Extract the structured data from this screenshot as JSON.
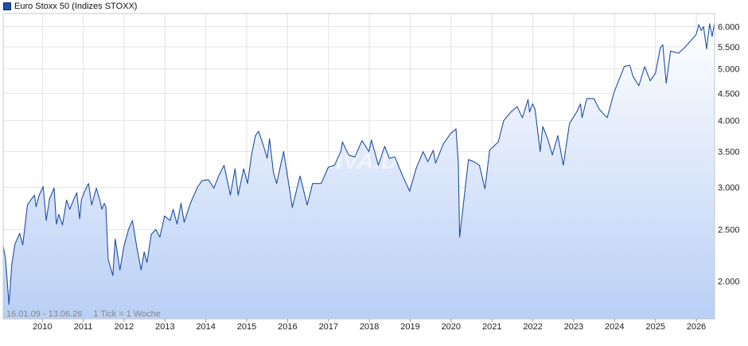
{
  "legend": {
    "label": "Euro Stoxx 50 (Indizes STOXX)",
    "color": "#1e4ea8"
  },
  "note": {
    "range": "16.01.09 - 13.06.26",
    "tick": "1 Tick = 1 Woche"
  },
  "watermark": "ARIVA.DE",
  "chart_data": {
    "type": "area",
    "title": "Euro Stoxx 50 (Indizes STOXX)",
    "y_scale": "log",
    "ylim": [
      1700,
      6350
    ],
    "x_range": [
      "2009-01-16",
      "2026-06-13"
    ],
    "y_ticks": [
      2000,
      2500,
      3000,
      3500,
      4000,
      4500,
      5000,
      5500,
      6000
    ],
    "y_tick_labels": [
      "2.000",
      "2.500",
      "3.000",
      "3.500",
      "4.000",
      "4.500",
      "5.000",
      "5.500",
      "6.000"
    ],
    "x_ticks": [
      "2010",
      "2011",
      "2012",
      "2013",
      "2014",
      "2015",
      "2016",
      "2017",
      "2018",
      "2019",
      "2020",
      "2021",
      "2022",
      "2023",
      "2024",
      "2025",
      "2026"
    ],
    "grid": true,
    "line_color": "#1e4ea8",
    "fill_gradient": [
      "#ffffff",
      "#b9cff5"
    ],
    "series": [
      {
        "values": [
          [
            "2009-01-16",
            2330
          ],
          [
            "2009-02-06",
            2200
          ],
          [
            "2009-03-09",
            1810
          ],
          [
            "2009-04-03",
            2150
          ],
          [
            "2009-05-01",
            2350
          ],
          [
            "2009-06-12",
            2460
          ],
          [
            "2009-07-10",
            2340
          ],
          [
            "2009-08-21",
            2780
          ],
          [
            "2009-09-25",
            2850
          ],
          [
            "2009-10-23",
            2900
          ],
          [
            "2009-11-06",
            2760
          ],
          [
            "2009-12-04",
            2900
          ],
          [
            "2010-01-08",
            3010
          ],
          [
            "2010-02-05",
            2600
          ],
          [
            "2010-03-05",
            2850
          ],
          [
            "2010-04-16",
            2990
          ],
          [
            "2010-05-07",
            2560
          ],
          [
            "2010-05-28",
            2670
          ],
          [
            "2010-06-30",
            2550
          ],
          [
            "2010-08-06",
            2840
          ],
          [
            "2010-09-03",
            2730
          ],
          [
            "2010-10-15",
            2870
          ],
          [
            "2010-11-05",
            2930
          ],
          [
            "2010-11-30",
            2620
          ],
          [
            "2010-12-17",
            2850
          ],
          [
            "2011-01-14",
            2950
          ],
          [
            "2011-02-18",
            3050
          ],
          [
            "2011-03-18",
            2780
          ],
          [
            "2011-04-29",
            2990
          ],
          [
            "2011-05-27",
            2850
          ],
          [
            "2011-06-17",
            2730
          ],
          [
            "2011-07-08",
            2800
          ],
          [
            "2011-07-22",
            2760
          ],
          [
            "2011-08-12",
            2200
          ],
          [
            "2011-09-23",
            2050
          ],
          [
            "2011-10-14",
            2400
          ],
          [
            "2011-11-25",
            2100
          ],
          [
            "2011-12-30",
            2320
          ],
          [
            "2012-02-10",
            2500
          ],
          [
            "2012-03-16",
            2600
          ],
          [
            "2012-04-27",
            2300
          ],
          [
            "2012-06-01",
            2100
          ],
          [
            "2012-06-29",
            2270
          ],
          [
            "2012-07-24",
            2170
          ],
          [
            "2012-08-31",
            2450
          ],
          [
            "2012-10-12",
            2500
          ],
          [
            "2012-11-16",
            2420
          ],
          [
            "2012-12-28",
            2650
          ],
          [
            "2013-02-15",
            2600
          ],
          [
            "2013-03-15",
            2730
          ],
          [
            "2013-04-19",
            2560
          ],
          [
            "2013-05-24",
            2800
          ],
          [
            "2013-06-21",
            2580
          ],
          [
            "2013-08-16",
            2800
          ],
          [
            "2013-10-18",
            3000
          ],
          [
            "2013-11-29",
            3090
          ],
          [
            "2014-01-24",
            3100
          ],
          [
            "2014-03-14",
            2990
          ],
          [
            "2014-04-25",
            3150
          ],
          [
            "2014-06-13",
            3300
          ],
          [
            "2014-08-08",
            2900
          ],
          [
            "2014-09-19",
            3250
          ],
          [
            "2014-10-17",
            2900
          ],
          [
            "2014-12-05",
            3250
          ],
          [
            "2015-01-09",
            3050
          ],
          [
            "2015-02-13",
            3450
          ],
          [
            "2015-03-20",
            3750
          ],
          [
            "2015-04-17",
            3820
          ],
          [
            "2015-05-29",
            3600
          ],
          [
            "2015-07-03",
            3400
          ],
          [
            "2015-07-24",
            3700
          ],
          [
            "2015-08-28",
            3200
          ],
          [
            "2015-09-25",
            3050
          ],
          [
            "2015-11-27",
            3500
          ],
          [
            "2016-01-22",
            2950
          ],
          [
            "2016-02-12",
            2750
          ],
          [
            "2016-04-22",
            3150
          ],
          [
            "2016-06-24",
            2780
          ],
          [
            "2016-08-12",
            3050
          ],
          [
            "2016-10-28",
            3050
          ],
          [
            "2016-12-30",
            3270
          ],
          [
            "2017-02-24",
            3300
          ],
          [
            "2017-04-21",
            3500
          ],
          [
            "2017-05-05",
            3650
          ],
          [
            "2017-06-30",
            3450
          ],
          [
            "2017-08-25",
            3420
          ],
          [
            "2017-10-27",
            3670
          ],
          [
            "2017-12-29",
            3500
          ],
          [
            "2018-01-19",
            3680
          ],
          [
            "2018-03-23",
            3300
          ],
          [
            "2018-05-18",
            3580
          ],
          [
            "2018-06-29",
            3400
          ],
          [
            "2018-08-17",
            3420
          ],
          [
            "2018-10-26",
            3150
          ],
          [
            "2018-12-27",
            2950
          ],
          [
            "2019-02-22",
            3250
          ],
          [
            "2019-04-26",
            3500
          ],
          [
            "2019-06-07",
            3350
          ],
          [
            "2019-07-26",
            3520
          ],
          [
            "2019-08-16",
            3330
          ],
          [
            "2019-10-25",
            3620
          ],
          [
            "2019-12-27",
            3780
          ],
          [
            "2020-02-14",
            3860
          ],
          [
            "2020-03-06",
            3330
          ],
          [
            "2020-03-18",
            2420
          ],
          [
            "2020-04-24",
            2830
          ],
          [
            "2020-06-05",
            3380
          ],
          [
            "2020-07-24",
            3350
          ],
          [
            "2020-09-11",
            3300
          ],
          [
            "2020-10-30",
            2980
          ],
          [
            "2020-12-11",
            3520
          ],
          [
            "2021-02-26",
            3650
          ],
          [
            "2021-04-16",
            4000
          ],
          [
            "2021-06-18",
            4150
          ],
          [
            "2021-08-13",
            4250
          ],
          [
            "2021-09-30",
            4050
          ],
          [
            "2021-11-19",
            4380
          ],
          [
            "2021-12-03",
            4150
          ],
          [
            "2021-12-30",
            4300
          ],
          [
            "2022-01-21",
            4200
          ],
          [
            "2022-03-07",
            3500
          ],
          [
            "2022-03-31",
            3900
          ],
          [
            "2022-05-13",
            3700
          ],
          [
            "2022-06-24",
            3450
          ],
          [
            "2022-08-12",
            3750
          ],
          [
            "2022-09-30",
            3300
          ],
          [
            "2022-11-25",
            3950
          ],
          [
            "2023-01-27",
            4150
          ],
          [
            "2023-03-03",
            4300
          ],
          [
            "2023-03-17",
            4050
          ],
          [
            "2023-04-28",
            4400
          ],
          [
            "2023-06-30",
            4400
          ],
          [
            "2023-08-18",
            4200
          ],
          [
            "2023-10-27",
            4050
          ],
          [
            "2023-12-29",
            4530
          ],
          [
            "2024-03-28",
            5050
          ],
          [
            "2024-05-17",
            5080
          ],
          [
            "2024-06-14",
            4840
          ],
          [
            "2024-08-05",
            4650
          ],
          [
            "2024-09-27",
            5050
          ],
          [
            "2024-11-15",
            4750
          ],
          [
            "2024-12-31",
            4900
          ],
          [
            "2025-02-14",
            5480
          ],
          [
            "2025-03-07",
            5550
          ],
          [
            "2025-04-07",
            4700
          ],
          [
            "2025-05-16",
            5400
          ],
          [
            "2025-07-25",
            5350
          ],
          [
            "2025-09-26",
            5500
          ],
          [
            "2025-11-14",
            5650
          ],
          [
            "2025-12-31",
            5800
          ],
          [
            "2026-01-23",
            6050
          ],
          [
            "2026-02-13",
            5900
          ],
          [
            "2026-03-06",
            6000
          ],
          [
            "2026-04-03",
            5450
          ],
          [
            "2026-04-30",
            6080
          ],
          [
            "2026-05-22",
            5750
          ],
          [
            "2026-06-13",
            6100
          ]
        ]
      }
    ]
  }
}
